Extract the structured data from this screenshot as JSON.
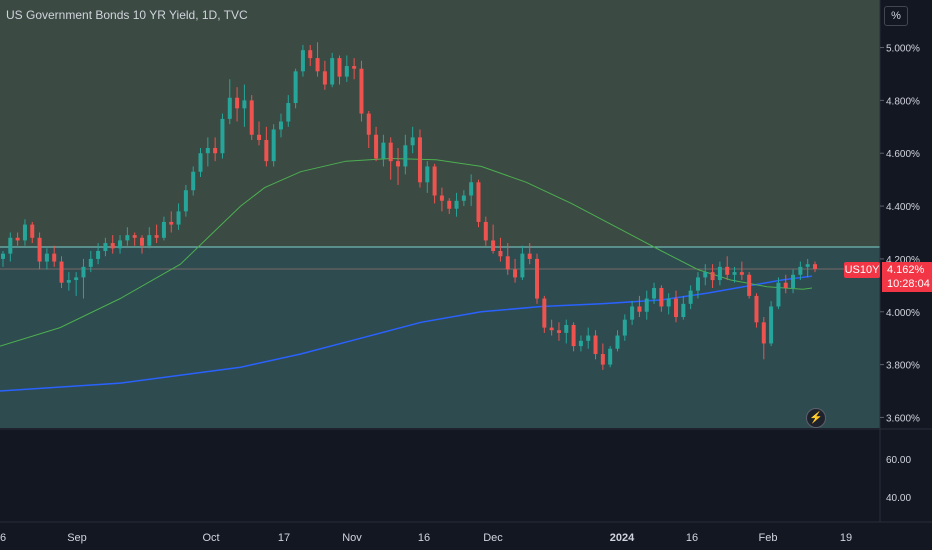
{
  "header": {
    "title": "US Government Bonds 10 YR Yield, 1D, TVC",
    "unit_button": "%"
  },
  "price_tag": {
    "symbol": "US10Y",
    "price": "4.162%",
    "countdown": "10:28:04"
  },
  "colors": {
    "up": "#26a69a",
    "down": "#ef5350",
    "ma_fast": "#4caf50",
    "ma_slow": "#2962ff",
    "zone_upper": "#3b4a43",
    "zone_lower": "#2e4b4f",
    "background": "#131722",
    "hline": "#7fd3ce"
  },
  "icons": {
    "replay": "lightning-icon"
  },
  "chart_data": {
    "type": "candlestick",
    "y_axis": {
      "unit": "%",
      "ylim": [
        3.56,
        5.18
      ],
      "ticks": [
        "5.000%",
        "4.800%",
        "4.600%",
        "4.400%",
        "4.200%",
        "4.000%",
        "3.800%",
        "3.600%"
      ]
    },
    "horizontal_line": 4.245,
    "zones": [
      {
        "from": 4.245,
        "to": 5.18,
        "name": "upper"
      },
      {
        "from": 3.56,
        "to": 4.245,
        "name": "lower"
      }
    ],
    "oscillator": {
      "ticks": [
        "60.00",
        "40.00"
      ]
    },
    "x_axis": {
      "ticks": [
        "6",
        "Sep",
        "Oct",
        "17",
        "Nov",
        "16",
        "Dec",
        "2024",
        "16",
        "Feb",
        "19"
      ]
    },
    "candles": [
      [
        4.2,
        4.23,
        4.17,
        4.22
      ],
      [
        4.22,
        4.3,
        4.19,
        4.28
      ],
      [
        4.28,
        4.3,
        4.25,
        4.27
      ],
      [
        4.27,
        4.35,
        4.25,
        4.33
      ],
      [
        4.33,
        4.34,
        4.26,
        4.28
      ],
      [
        4.28,
        4.3,
        4.16,
        4.19
      ],
      [
        4.19,
        4.24,
        4.16,
        4.22
      ],
      [
        4.22,
        4.25,
        4.17,
        4.19
      ],
      [
        4.19,
        4.21,
        4.09,
        4.11
      ],
      [
        4.11,
        4.15,
        4.08,
        4.12
      ],
      [
        4.12,
        4.15,
        4.06,
        4.13
      ],
      [
        4.13,
        4.2,
        4.05,
        4.17
      ],
      [
        4.17,
        4.23,
        4.15,
        4.2
      ],
      [
        4.2,
        4.26,
        4.18,
        4.23
      ],
      [
        4.23,
        4.28,
        4.21,
        4.26
      ],
      [
        4.26,
        4.29,
        4.22,
        4.24
      ],
      [
        4.24,
        4.29,
        4.22,
        4.27
      ],
      [
        4.27,
        4.32,
        4.25,
        4.29
      ],
      [
        4.29,
        4.3,
        4.25,
        4.28
      ],
      [
        4.28,
        4.29,
        4.22,
        4.25
      ],
      [
        4.25,
        4.32,
        4.24,
        4.29
      ],
      [
        4.29,
        4.33,
        4.26,
        4.28
      ],
      [
        4.28,
        4.36,
        4.27,
        4.34
      ],
      [
        4.34,
        4.38,
        4.3,
        4.33
      ],
      [
        4.33,
        4.41,
        4.31,
        4.38
      ],
      [
        4.38,
        4.48,
        4.36,
        4.46
      ],
      [
        4.46,
        4.55,
        4.44,
        4.53
      ],
      [
        4.53,
        4.62,
        4.51,
        4.6
      ],
      [
        4.6,
        4.66,
        4.55,
        4.62
      ],
      [
        4.62,
        4.66,
        4.57,
        4.6
      ],
      [
        4.6,
        4.75,
        4.58,
        4.73
      ],
      [
        4.73,
        4.88,
        4.71,
        4.81
      ],
      [
        4.81,
        4.85,
        4.72,
        4.77
      ],
      [
        4.77,
        4.86,
        4.7,
        4.8
      ],
      [
        4.8,
        4.82,
        4.65,
        4.67
      ],
      [
        4.67,
        4.72,
        4.63,
        4.65
      ],
      [
        4.65,
        4.7,
        4.55,
        4.57
      ],
      [
        4.57,
        4.71,
        4.55,
        4.69
      ],
      [
        4.69,
        4.75,
        4.66,
        4.72
      ],
      [
        4.72,
        4.82,
        4.7,
        4.79
      ],
      [
        4.79,
        4.92,
        4.77,
        4.91
      ],
      [
        4.91,
        5.01,
        4.89,
        4.99
      ],
      [
        4.99,
        5.01,
        4.93,
        4.96
      ],
      [
        4.96,
        5.02,
        4.89,
        4.91
      ],
      [
        4.91,
        4.95,
        4.84,
        4.86
      ],
      [
        4.86,
        4.98,
        4.85,
        4.96
      ],
      [
        4.96,
        4.97,
        4.86,
        4.89
      ],
      [
        4.89,
        4.97,
        4.87,
        4.93
      ],
      [
        4.93,
        4.96,
        4.88,
        4.92
      ],
      [
        4.92,
        4.95,
        4.72,
        4.75
      ],
      [
        4.75,
        4.76,
        4.62,
        4.67
      ],
      [
        4.67,
        4.7,
        4.57,
        4.58
      ],
      [
        4.58,
        4.67,
        4.55,
        4.64
      ],
      [
        4.64,
        4.66,
        4.5,
        4.57
      ],
      [
        4.57,
        4.62,
        4.48,
        4.55
      ],
      [
        4.55,
        4.67,
        4.52,
        4.63
      ],
      [
        4.63,
        4.7,
        4.6,
        4.66
      ],
      [
        4.66,
        4.69,
        4.47,
        4.49
      ],
      [
        4.49,
        4.57,
        4.45,
        4.55
      ],
      [
        4.55,
        4.56,
        4.41,
        4.44
      ],
      [
        4.44,
        4.47,
        4.38,
        4.42
      ],
      [
        4.42,
        4.43,
        4.37,
        4.39
      ],
      [
        4.39,
        4.45,
        4.36,
        4.42
      ],
      [
        4.42,
        4.46,
        4.4,
        4.44
      ],
      [
        4.44,
        4.52,
        4.4,
        4.49
      ],
      [
        4.49,
        4.5,
        4.32,
        4.34
      ],
      [
        4.34,
        4.36,
        4.25,
        4.27
      ],
      [
        4.27,
        4.33,
        4.22,
        4.23
      ],
      [
        4.23,
        4.28,
        4.19,
        4.21
      ],
      [
        4.21,
        4.26,
        4.14,
        4.16
      ],
      [
        4.16,
        4.2,
        4.11,
        4.13
      ],
      [
        4.13,
        4.25,
        4.12,
        4.22
      ],
      [
        4.22,
        4.26,
        4.18,
        4.2
      ],
      [
        4.2,
        4.22,
        4.03,
        4.05
      ],
      [
        4.05,
        4.06,
        3.92,
        3.94
      ],
      [
        3.94,
        3.97,
        3.91,
        3.93
      ],
      [
        3.93,
        3.96,
        3.89,
        3.92
      ],
      [
        3.92,
        3.97,
        3.88,
        3.95
      ],
      [
        3.95,
        3.96,
        3.85,
        3.87
      ],
      [
        3.87,
        3.91,
        3.85,
        3.89
      ],
      [
        3.89,
        3.94,
        3.86,
        3.91
      ],
      [
        3.91,
        3.93,
        3.82,
        3.84
      ],
      [
        3.84,
        3.88,
        3.78,
        3.8
      ],
      [
        3.8,
        3.87,
        3.79,
        3.86
      ],
      [
        3.86,
        3.93,
        3.85,
        3.91
      ],
      [
        3.91,
        3.99,
        3.89,
        3.97
      ],
      [
        3.97,
        4.04,
        3.95,
        4.02
      ],
      [
        4.02,
        4.06,
        3.98,
        4.0
      ],
      [
        4.0,
        4.08,
        3.97,
        4.05
      ],
      [
        4.05,
        4.11,
        4.03,
        4.09
      ],
      [
        4.09,
        4.1,
        4.0,
        4.02
      ],
      [
        4.02,
        4.07,
        3.99,
        4.05
      ],
      [
        4.05,
        4.08,
        3.96,
        3.98
      ],
      [
        3.98,
        4.06,
        3.97,
        4.03
      ],
      [
        4.03,
        4.1,
        4.01,
        4.08
      ],
      [
        4.08,
        4.15,
        4.05,
        4.13
      ],
      [
        4.13,
        4.18,
        4.1,
        4.15
      ],
      [
        4.15,
        4.18,
        4.09,
        4.12
      ],
      [
        4.12,
        4.19,
        4.1,
        4.17
      ],
      [
        4.17,
        4.21,
        4.12,
        4.14
      ],
      [
        4.14,
        4.17,
        4.11,
        4.15
      ],
      [
        4.15,
        4.19,
        4.12,
        4.14
      ],
      [
        4.14,
        4.15,
        4.05,
        4.06
      ],
      [
        4.06,
        4.07,
        3.94,
        3.96
      ],
      [
        3.96,
        3.98,
        3.82,
        3.88
      ],
      [
        3.88,
        4.04,
        3.87,
        4.02
      ],
      [
        4.02,
        4.13,
        4.01,
        4.11
      ],
      [
        4.11,
        4.14,
        4.07,
        4.09
      ],
      [
        4.09,
        4.16,
        4.07,
        4.14
      ],
      [
        4.14,
        4.19,
        4.12,
        4.17
      ],
      [
        4.17,
        4.2,
        4.13,
        4.18
      ],
      [
        4.18,
        4.19,
        4.15,
        4.162
      ]
    ],
    "ma_fast": [
      [
        0,
        3.87
      ],
      [
        20,
        3.94
      ],
      [
        40,
        4.05
      ],
      [
        60,
        4.18
      ],
      [
        70,
        4.29
      ],
      [
        80,
        4.4
      ],
      [
        88,
        4.47
      ],
      [
        100,
        4.53
      ],
      [
        115,
        4.57
      ],
      [
        130,
        4.58
      ],
      [
        145,
        4.575
      ],
      [
        160,
        4.55
      ],
      [
        175,
        4.49
      ],
      [
        190,
        4.41
      ],
      [
        205,
        4.32
      ],
      [
        220,
        4.23
      ],
      [
        232,
        4.16
      ],
      [
        243,
        4.12
      ],
      [
        255,
        4.095
      ],
      [
        267,
        4.085
      ],
      [
        270,
        4.09
      ]
    ],
    "ma_slow": [
      [
        0,
        3.7
      ],
      [
        40,
        3.73
      ],
      [
        80,
        3.79
      ],
      [
        100,
        3.84
      ],
      [
        120,
        3.9
      ],
      [
        140,
        3.96
      ],
      [
        160,
        4.0
      ],
      [
        180,
        4.02
      ],
      [
        200,
        4.03
      ],
      [
        220,
        4.045
      ],
      [
        235,
        4.07
      ],
      [
        250,
        4.1
      ],
      [
        260,
        4.12
      ],
      [
        270,
        4.135
      ]
    ],
    "ma_day_span": 270
  }
}
